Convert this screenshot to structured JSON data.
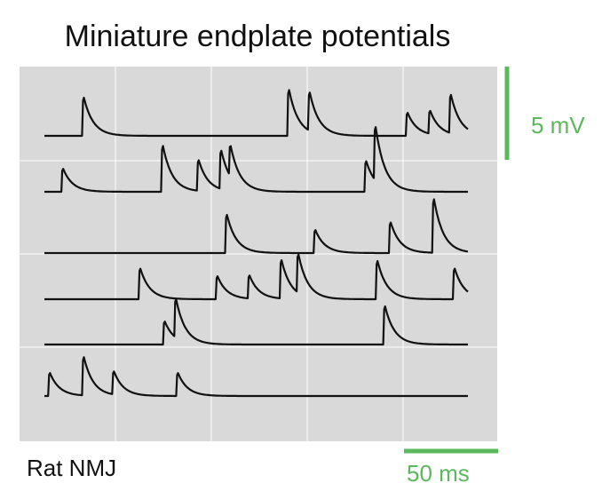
{
  "chart_data": {
    "type": "line",
    "title": "Miniature endplate potentials",
    "annotation": "Rat NMJ",
    "grid": true,
    "colors": {
      "background": "#d9d9d9",
      "grid": "#ffffff",
      "trace": "#111111",
      "scale_bar": "#5cb85c"
    },
    "scale_bars": {
      "voltage": {
        "value": 5,
        "unit": "mV",
        "label": "5 mV"
      },
      "time": {
        "value": 50,
        "unit": "ms",
        "label": "50 ms"
      }
    },
    "x_span_ms": 225,
    "sweeps": [
      {
        "events": [
          {
            "t": 20,
            "amp": 2.5
          },
          {
            "t": 129,
            "amp": 3.0
          },
          {
            "t": 140,
            "amp": 2.5
          },
          {
            "t": 192,
            "amp": 1.5
          },
          {
            "t": 204,
            "amp": 1.5
          },
          {
            "t": 215,
            "amp": 2.5
          }
        ]
      },
      {
        "events": [
          {
            "t": 9,
            "amp": 1.5
          },
          {
            "t": 62,
            "amp": 3.0
          },
          {
            "t": 81,
            "amp": 2.0
          },
          {
            "t": 93,
            "amp": 2.5
          },
          {
            "t": 98,
            "amp": 2.0
          },
          {
            "t": 170,
            "amp": 2.0
          },
          {
            "t": 175,
            "amp": 3.5
          }
        ]
      },
      {
        "events": [
          {
            "t": 96,
            "amp": 2.5
          },
          {
            "t": 143,
            "amp": 1.5
          },
          {
            "t": 183,
            "amp": 2.0
          },
          {
            "t": 206,
            "amp": 3.5
          }
        ]
      },
      {
        "events": [
          {
            "t": 50,
            "amp": 2.0
          },
          {
            "t": 91,
            "amp": 1.5
          },
          {
            "t": 108,
            "amp": 1.5
          },
          {
            "t": 125,
            "amp": 2.5
          },
          {
            "t": 134,
            "amp": 2.5
          },
          {
            "t": 176,
            "amp": 2.5
          },
          {
            "t": 217,
            "amp": 2.0
          }
        ]
      },
      {
        "events": [
          {
            "t": 63,
            "amp": 1.5
          },
          {
            "t": 69,
            "amp": 2.5
          },
          {
            "t": 180,
            "amp": 2.5
          }
        ]
      },
      {
        "events": [
          {
            "t": 2,
            "amp": 1.5
          },
          {
            "t": 20,
            "amp": 2.5
          },
          {
            "t": 36,
            "amp": 1.5
          },
          {
            "t": 70,
            "amp": 1.5
          }
        ]
      }
    ]
  }
}
